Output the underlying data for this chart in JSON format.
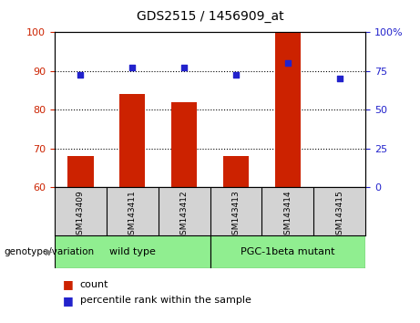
{
  "title": "GDS2515 / 1456909_at",
  "samples": [
    "GSM143409",
    "GSM143411",
    "GSM143412",
    "GSM143413",
    "GSM143414",
    "GSM143415"
  ],
  "bar_values": [
    68,
    84,
    82,
    68,
    100,
    60
  ],
  "scatter_left_vals": [
    89,
    91,
    91,
    89,
    92,
    88
  ],
  "bar_color": "#cc2200",
  "scatter_color": "#2222cc",
  "ylim_left": [
    60,
    100
  ],
  "yticks_left": [
    60,
    70,
    80,
    90,
    100
  ],
  "yticks_right": [
    0,
    25,
    50,
    75,
    100
  ],
  "ytick_labels_right": [
    "0",
    "25",
    "50",
    "75",
    "100%"
  ],
  "grid_values": [
    70,
    80,
    90
  ],
  "genotype_label": "genotype/variation",
  "legend_count": "count",
  "legend_percentile": "percentile rank within the sample",
  "gray_color": "#d3d3d3",
  "green_color": "#90ee90",
  "wt_label": "wild type",
  "pgc_label": "PGC-1beta mutant",
  "title_fontsize": 10,
  "tick_fontsize": 8,
  "label_fontsize": 8
}
